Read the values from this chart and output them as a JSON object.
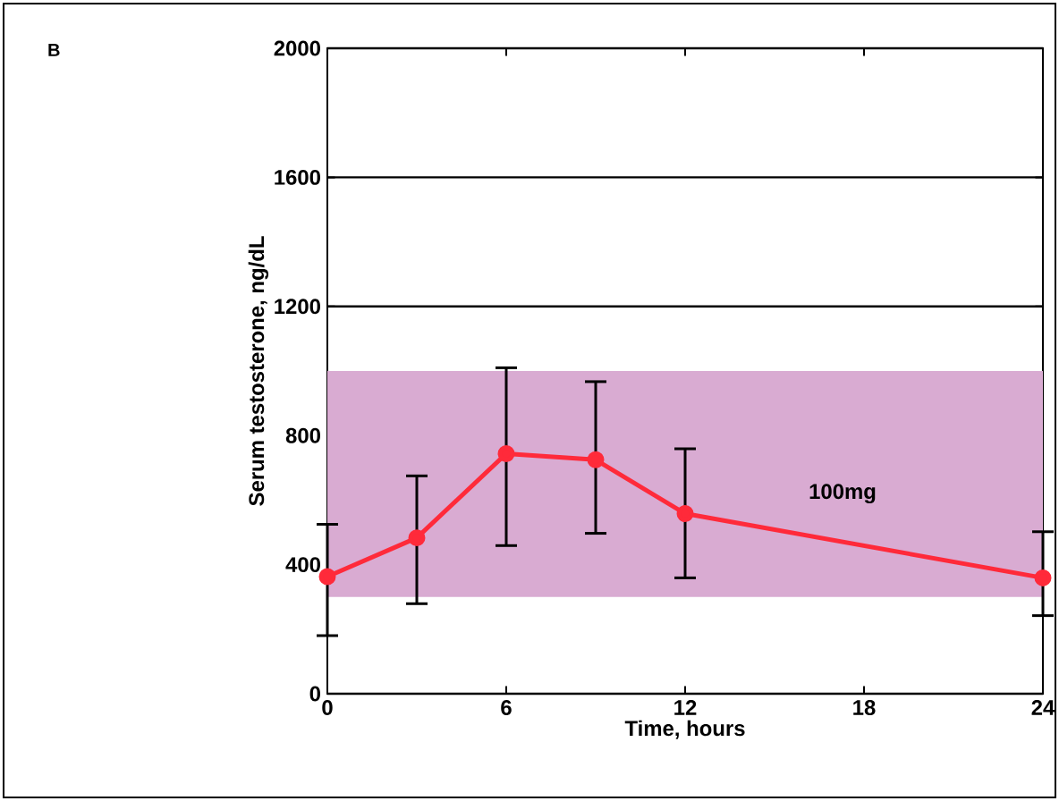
{
  "chart_data": {
    "type": "line",
    "title": "B",
    "xlabel": "Time, hours",
    "ylabel": "Serum testosterone, ng/dL",
    "x": [
      0,
      3,
      6,
      9,
      12,
      24
    ],
    "series": [
      {
        "color": "#ff2a3a",
        "values": [
          363,
          483,
          744,
          725,
          558,
          359
        ],
        "errors": [
          [
            180,
            525
          ],
          [
            279,
            675
          ],
          [
            459,
            1010
          ],
          [
            497,
            967
          ],
          [
            359,
            759
          ],
          [
            242,
            502
          ]
        ]
      }
    ],
    "xlim": [
      0,
      24
    ],
    "xticks": [
      0,
      6,
      12,
      18,
      24
    ],
    "ylim": [
      0,
      2000
    ],
    "yticks": [
      0,
      400,
      800,
      1200,
      1600,
      2000
    ],
    "bands": [
      {
        "axis": "y",
        "from": 300,
        "to": 1000,
        "color": "#d9abd2"
      }
    ],
    "annotations": [
      "100mg"
    ],
    "grid": "y",
    "marker": "circle",
    "line_style": "solid"
  }
}
